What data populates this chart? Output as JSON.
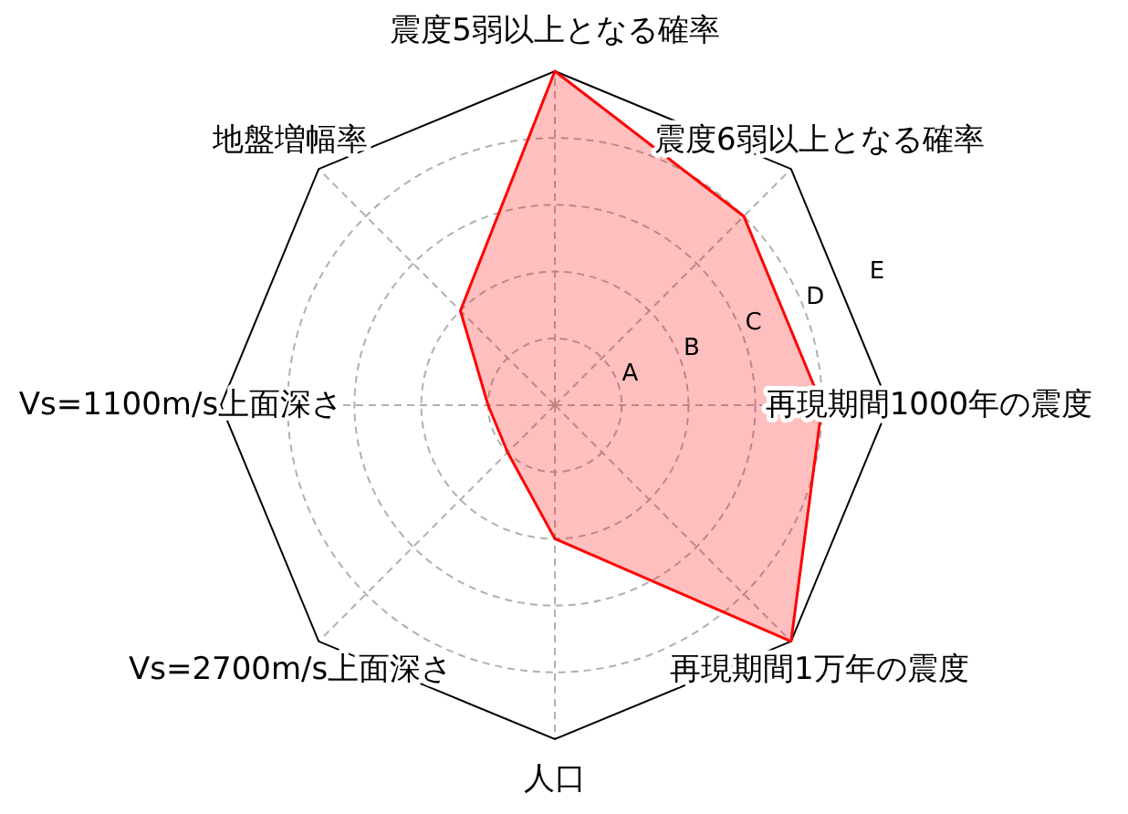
{
  "chart_data": {
    "type": "radar",
    "categories": [
      "震度5弱以上となる確率",
      "震度6弱以上となる確率",
      "再現期間1000年の震度",
      "再現期間1万年の震度",
      "人口",
      "Vs=2700m/s上面深さ",
      "Vs=1100m/s上面深さ",
      "地盤増幅率"
    ],
    "series": [
      {
        "color": "#ff0000",
        "values": [
          5,
          4,
          4,
          5,
          2,
          1,
          1,
          2
        ]
      }
    ],
    "ylim": [
      0,
      5
    ],
    "yticks": [
      {
        "value": 1,
        "label": "A"
      },
      {
        "value": 2,
        "label": "B"
      },
      {
        "value": 3,
        "label": "C"
      },
      {
        "value": 4,
        "label": "D"
      },
      {
        "value": 5,
        "label": "E"
      }
    ],
    "grid": true
  }
}
